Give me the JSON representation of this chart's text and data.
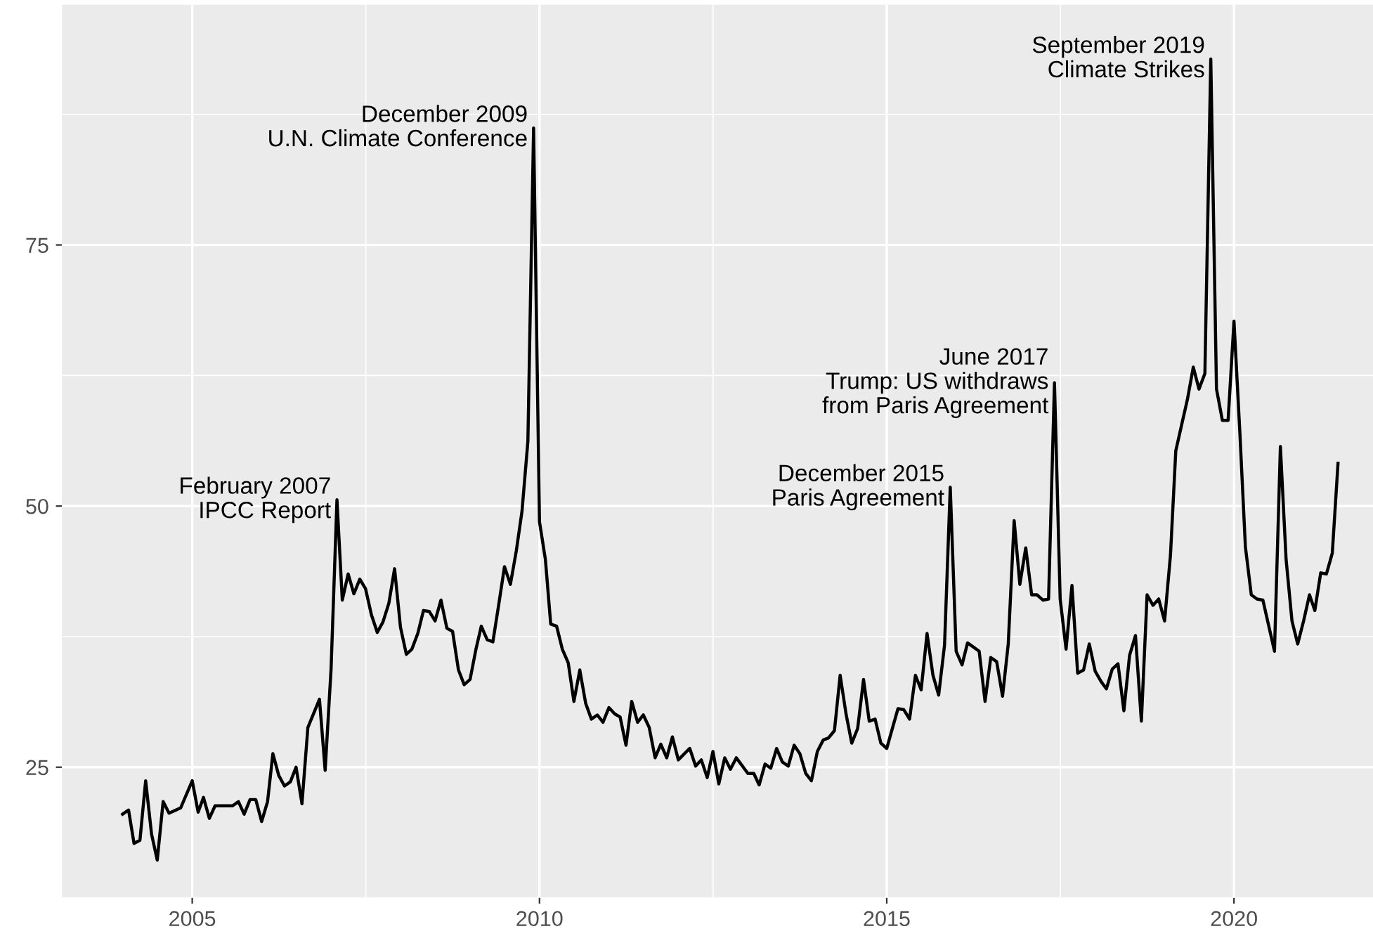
{
  "chart_data": {
    "type": "line",
    "x": [
      "2004-01",
      "2004-02",
      "2004-03",
      "2004-04",
      "2004-05",
      "2004-06",
      "2004-07",
      "2004-08",
      "2004-09",
      "2004-11",
      "2005-01",
      "2005-02",
      "2005-03",
      "2005-04",
      "2005-05",
      "2005-08",
      "2005-09",
      "2005-10",
      "2005-11",
      "2005-12",
      "2006-01",
      "2006-02",
      "2006-03",
      "2006-04",
      "2006-05",
      "2006-06",
      "2006-07",
      "2006-08",
      "2006-09",
      "2006-11",
      "2006-12",
      "2007-01",
      "2007-02",
      "2007-03",
      "2007-04",
      "2007-05",
      "2007-06",
      "2007-07",
      "2007-08",
      "2007-09",
      "2007-10",
      "2007-11",
      "2007-12",
      "2008-01",
      "2008-02",
      "2008-03",
      "2008-04",
      "2008-05",
      "2008-06",
      "2008-07",
      "2008-08",
      "2008-09",
      "2008-10",
      "2008-11",
      "2008-12",
      "2009-01",
      "2009-02",
      "2009-03",
      "2009-04",
      "2009-05",
      "2009-06",
      "2009-07",
      "2009-08",
      "2009-09",
      "2009-10",
      "2009-11",
      "2009-12",
      "2010-01",
      "2010-02",
      "2010-03",
      "2010-04",
      "2010-05",
      "2010-06",
      "2010-07",
      "2010-08",
      "2010-09",
      "2010-10",
      "2010-11",
      "2010-12",
      "2011-01",
      "2011-02",
      "2011-03",
      "2011-04",
      "2011-05",
      "2011-06",
      "2011-07",
      "2011-08",
      "2011-09",
      "2011-10",
      "2011-11",
      "2011-12",
      "2012-01",
      "2012-03",
      "2012-04",
      "2012-05",
      "2012-06",
      "2012-07",
      "2012-08",
      "2012-09",
      "2012-10",
      "2012-11",
      "2013-01",
      "2013-02",
      "2013-03",
      "2013-04",
      "2013-05",
      "2013-06",
      "2013-07",
      "2013-08",
      "2013-09",
      "2013-10",
      "2013-11",
      "2013-12",
      "2014-01",
      "2014-02",
      "2014-03",
      "2014-04",
      "2014-05",
      "2014-06",
      "2014-07",
      "2014-08",
      "2014-09",
      "2014-10",
      "2014-11",
      "2014-12",
      "2015-01",
      "2015-02",
      "2015-03",
      "2015-04",
      "2015-05",
      "2015-06",
      "2015-07",
      "2015-08",
      "2015-09",
      "2015-10",
      "2015-11",
      "2015-12",
      "2016-01",
      "2016-02",
      "2016-03",
      "2016-05",
      "2016-06",
      "2016-07",
      "2016-08",
      "2016-09",
      "2016-10",
      "2016-11",
      "2016-12",
      "2017-01",
      "2017-02",
      "2017-03",
      "2017-04",
      "2017-05",
      "2017-06",
      "2017-07",
      "2017-08",
      "2017-09",
      "2017-10",
      "2017-11",
      "2017-12",
      "2018-01",
      "2018-02",
      "2018-03",
      "2018-04",
      "2018-05",
      "2018-06",
      "2018-07",
      "2018-08",
      "2018-09",
      "2018-10",
      "2018-11",
      "2018-12",
      "2019-01",
      "2019-02",
      "2019-03",
      "2019-04",
      "2019-05",
      "2019-06",
      "2019-07",
      "2019-08",
      "2019-09",
      "2019-10",
      "2019-11",
      "2019-12",
      "2020-01",
      "2020-02",
      "2020-03",
      "2020-04",
      "2020-05",
      "2020-06",
      "2020-07",
      "2020-08",
      "2020-09",
      "2020-10",
      "2020-11",
      "2020-12",
      "2021-01",
      "2021-02",
      "2021-03",
      "2021-04",
      "2021-05",
      "2021-06",
      "2021-07"
    ],
    "series": [
      {
        "color": "#000000",
        "values": [
          20.5,
          20.9,
          17.7,
          18.0,
          23.7,
          18.6,
          16.1,
          21.7,
          20.6,
          21.1,
          23.7,
          20.7,
          22.1,
          20.1,
          21.3,
          21.3,
          21.7,
          20.5,
          21.9,
          21.9,
          19.8,
          21.7,
          26.3,
          24.2,
          23.2,
          23.6,
          25.0,
          21.5,
          28.8,
          31.5,
          24.7,
          34.4,
          50.6,
          41.0,
          43.5,
          41.6,
          43.0,
          42.1,
          39.6,
          37.9,
          38.9,
          40.7,
          44.0,
          38.4,
          35.8,
          36.3,
          37.8,
          40.0,
          39.9,
          39.0,
          41.0,
          38.3,
          38.0,
          34.3,
          32.9,
          33.4,
          36.3,
          38.5,
          37.2,
          37.0,
          40.6,
          44.2,
          42.5,
          45.7,
          49.5,
          56.2,
          86.2,
          48.5,
          44.9,
          38.7,
          38.5,
          36.3,
          35.0,
          31.3,
          34.3,
          31.1,
          29.6,
          30.0,
          29.3,
          30.7,
          30.1,
          29.8,
          27.1,
          31.3,
          29.3,
          30.0,
          28.8,
          25.9,
          27.2,
          25.9,
          27.9,
          25.7,
          26.8,
          25.1,
          25.7,
          24.0,
          26.5,
          23.4,
          25.9,
          24.8,
          25.9,
          24.4,
          24.4,
          23.3,
          25.3,
          24.9,
          26.8,
          25.5,
          25.1,
          27.1,
          26.3,
          24.4,
          23.7,
          26.5,
          27.6,
          27.8,
          28.5,
          33.8,
          30.1,
          27.3,
          28.7,
          33.4,
          29.4,
          29.6,
          27.3,
          26.8,
          28.8,
          30.6,
          30.5,
          29.6,
          33.8,
          32.4,
          37.8,
          33.8,
          31.9,
          36.7,
          51.8,
          36.1,
          34.8,
          36.9,
          36.1,
          31.3,
          35.5,
          35.1,
          31.8,
          36.8,
          48.6,
          42.5,
          46.0,
          41.5,
          41.5,
          41.0,
          41.1,
          61.8,
          41.1,
          36.3,
          42.4,
          34.0,
          34.3,
          36.8,
          34.2,
          33.2,
          32.5,
          34.4,
          34.9,
          30.4,
          35.7,
          37.6,
          29.4,
          41.5,
          40.5,
          41.1,
          39.0,
          45.3,
          55.3,
          57.8,
          60.2,
          63.3,
          61.2,
          62.7,
          92.8,
          61.2,
          58.2,
          58.2,
          67.7,
          57.0,
          46.1,
          41.5,
          41.1,
          41.0,
          38.6,
          36.1,
          55.7,
          44.9,
          39.0,
          36.8,
          39.0,
          41.5,
          40.0,
          43.6,
          43.5,
          45.5,
          54.1
        ]
      }
    ],
    "xlim": [
      "2003-02-15",
      "2022-01-01"
    ],
    "xticks": [
      "2005",
      "2010",
      "2015",
      "2020"
    ],
    "ylim": [
      12.5,
      98
    ],
    "yticks": [
      25,
      50,
      75
    ],
    "grid": true,
    "annotations": [
      {
        "text": "February 2007\nIPCC Report",
        "x": "2007-02",
        "y": 50.6
      },
      {
        "text": "December 2009\nU.N. Climate Conference",
        "x": "2009-12",
        "y": 86.2
      },
      {
        "text": "December 2015\nParis Agreement",
        "x": "2015-12",
        "y": 51.8
      },
      {
        "text": "June 2017\nTrump: US withdraws\nfrom Paris Agreement",
        "x": "2017-06",
        "y": 61.8
      },
      {
        "text": "September 2019\nClimate Strikes",
        "x": "2019-09",
        "y": 92.8
      }
    ]
  }
}
